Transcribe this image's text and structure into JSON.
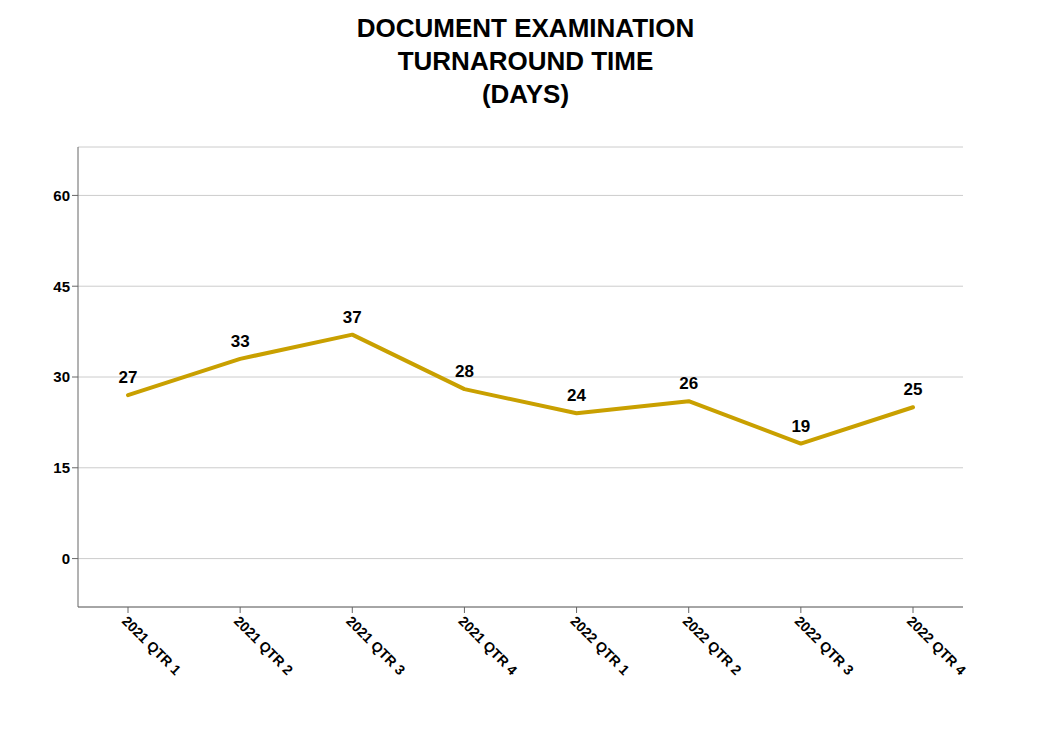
{
  "chart_data": {
    "type": "line",
    "title": "DOCUMENT EXAMINATION\nTURNAROUND TIME\n(DAYS)",
    "categories": [
      "2021 QTR 1",
      "2021 QTR 2",
      "2021 QTR 3",
      "2021 QTR 4",
      "2022 QTR 1",
      "2022 QTR 2",
      "2022 QTR 3",
      "2022 QTR 4"
    ],
    "values": [
      27,
      33,
      37,
      28,
      24,
      26,
      19,
      25
    ],
    "color": "#C9A000",
    "ylim": [
      -8,
      68
    ],
    "yticks": [
      0,
      15,
      30,
      45,
      60
    ],
    "grid": true,
    "data_labels": true
  }
}
